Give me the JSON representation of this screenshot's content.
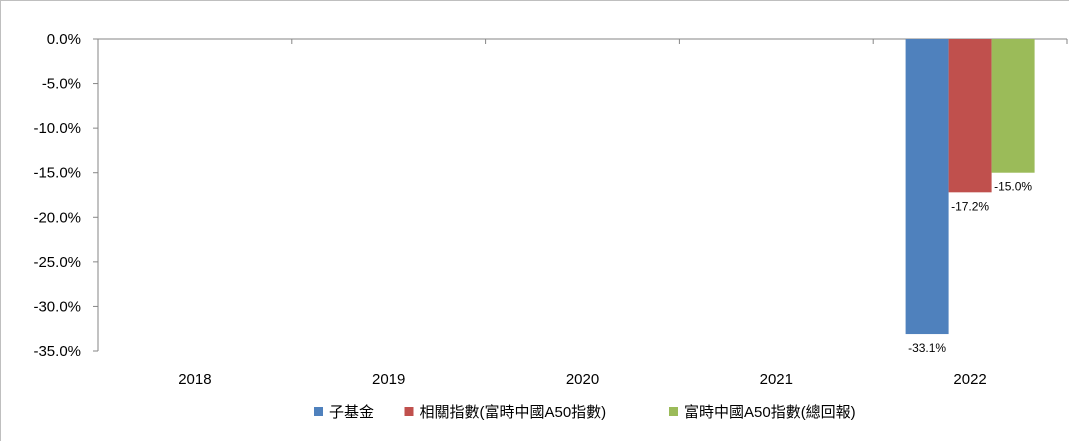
{
  "chart_data": {
    "type": "bar",
    "categories": [
      "2018",
      "2019",
      "2020",
      "2021",
      "2022"
    ],
    "series": [
      {
        "name": "子基金",
        "color": "#4f81bd",
        "values": [
          null,
          null,
          null,
          null,
          -33.1
        ],
        "labels": [
          "",
          "",
          "",
          "",
          "-33.1%"
        ]
      },
      {
        "name": "相關指數(富時中國A50指數)",
        "color": "#c0504d",
        "values": [
          null,
          null,
          null,
          null,
          -17.2
        ],
        "labels": [
          "",
          "",
          "",
          "",
          "-17.2%"
        ]
      },
      {
        "name": "富時中國A50指數(總回報)",
        "color": "#9bbb59",
        "values": [
          null,
          null,
          null,
          null,
          -15.0
        ],
        "labels": [
          "",
          "",
          "",
          "",
          "-15.0%"
        ]
      }
    ],
    "yticks": [
      "0.0%",
      "-5.0%",
      "-10.0%",
      "-15.0%",
      "-20.0%",
      "-25.0%",
      "-30.0%",
      "-35.0%"
    ],
    "ylim": [
      -35,
      0
    ],
    "grid": false,
    "legend_position": "bottom"
  }
}
